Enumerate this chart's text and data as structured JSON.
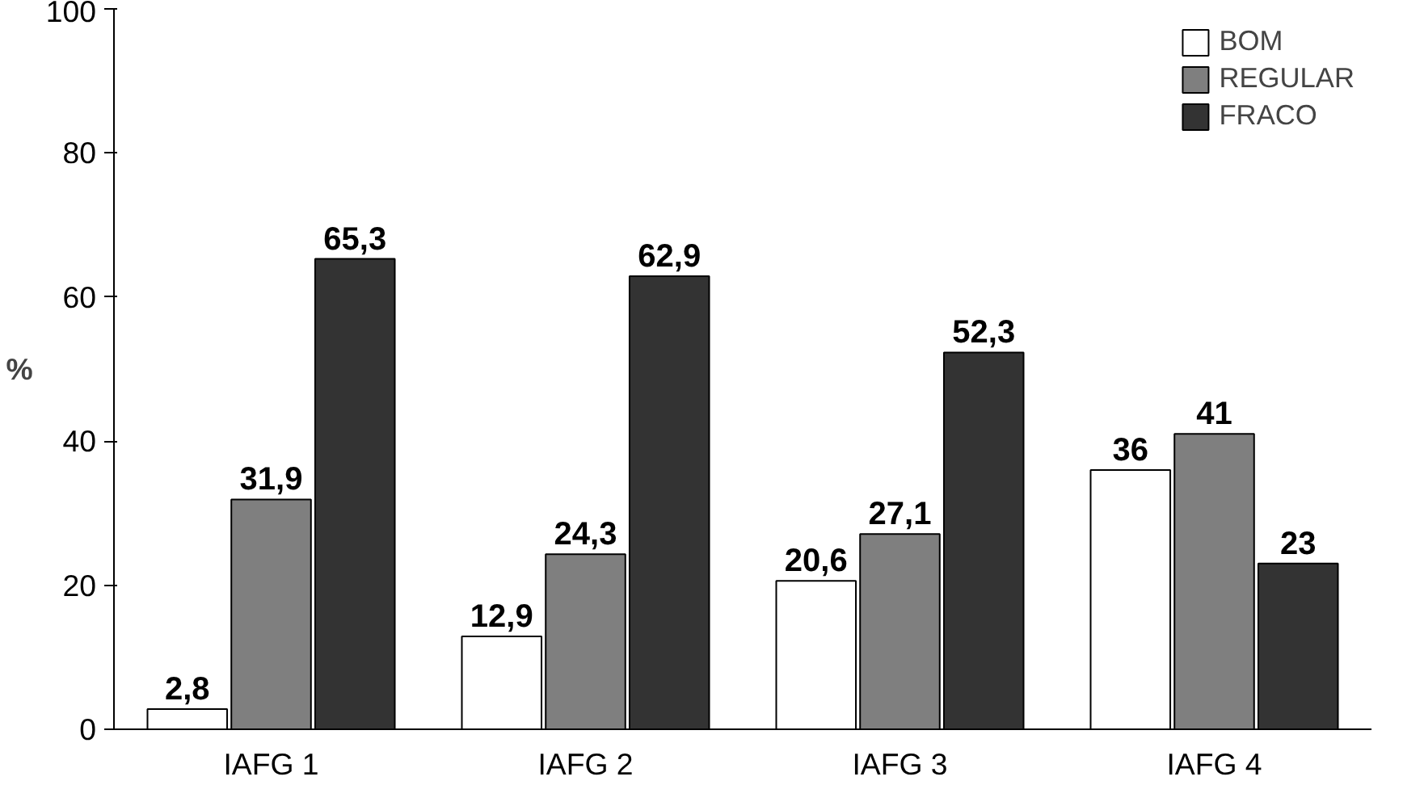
{
  "chart_data": {
    "type": "bar",
    "ylabel": "%",
    "categories": [
      "IAFG 1",
      "IAFG 2",
      "IAFG 3",
      "IAFG 4"
    ],
    "series": [
      {
        "name": "BOM",
        "color": "#ffffff",
        "values": [
          2.8,
          12.9,
          20.6,
          36
        ],
        "value_labels": [
          "2,8",
          "12,9",
          "20,6",
          "36"
        ]
      },
      {
        "name": "REGULAR",
        "color": "#7f7f7f",
        "values": [
          31.9,
          24.3,
          27.1,
          41
        ],
        "value_labels": [
          "31,9",
          "24,3",
          "27,1",
          "41"
        ]
      },
      {
        "name": "FRACO",
        "color": "#333333",
        "values": [
          65.3,
          62.9,
          52.3,
          23
        ],
        "value_labels": [
          "65,3",
          "62,9",
          "52,3",
          "23"
        ]
      }
    ],
    "ylim": [
      0,
      100
    ],
    "yticks": [
      0,
      20,
      40,
      60,
      80,
      100
    ],
    "grid": false,
    "legend": "top right"
  }
}
